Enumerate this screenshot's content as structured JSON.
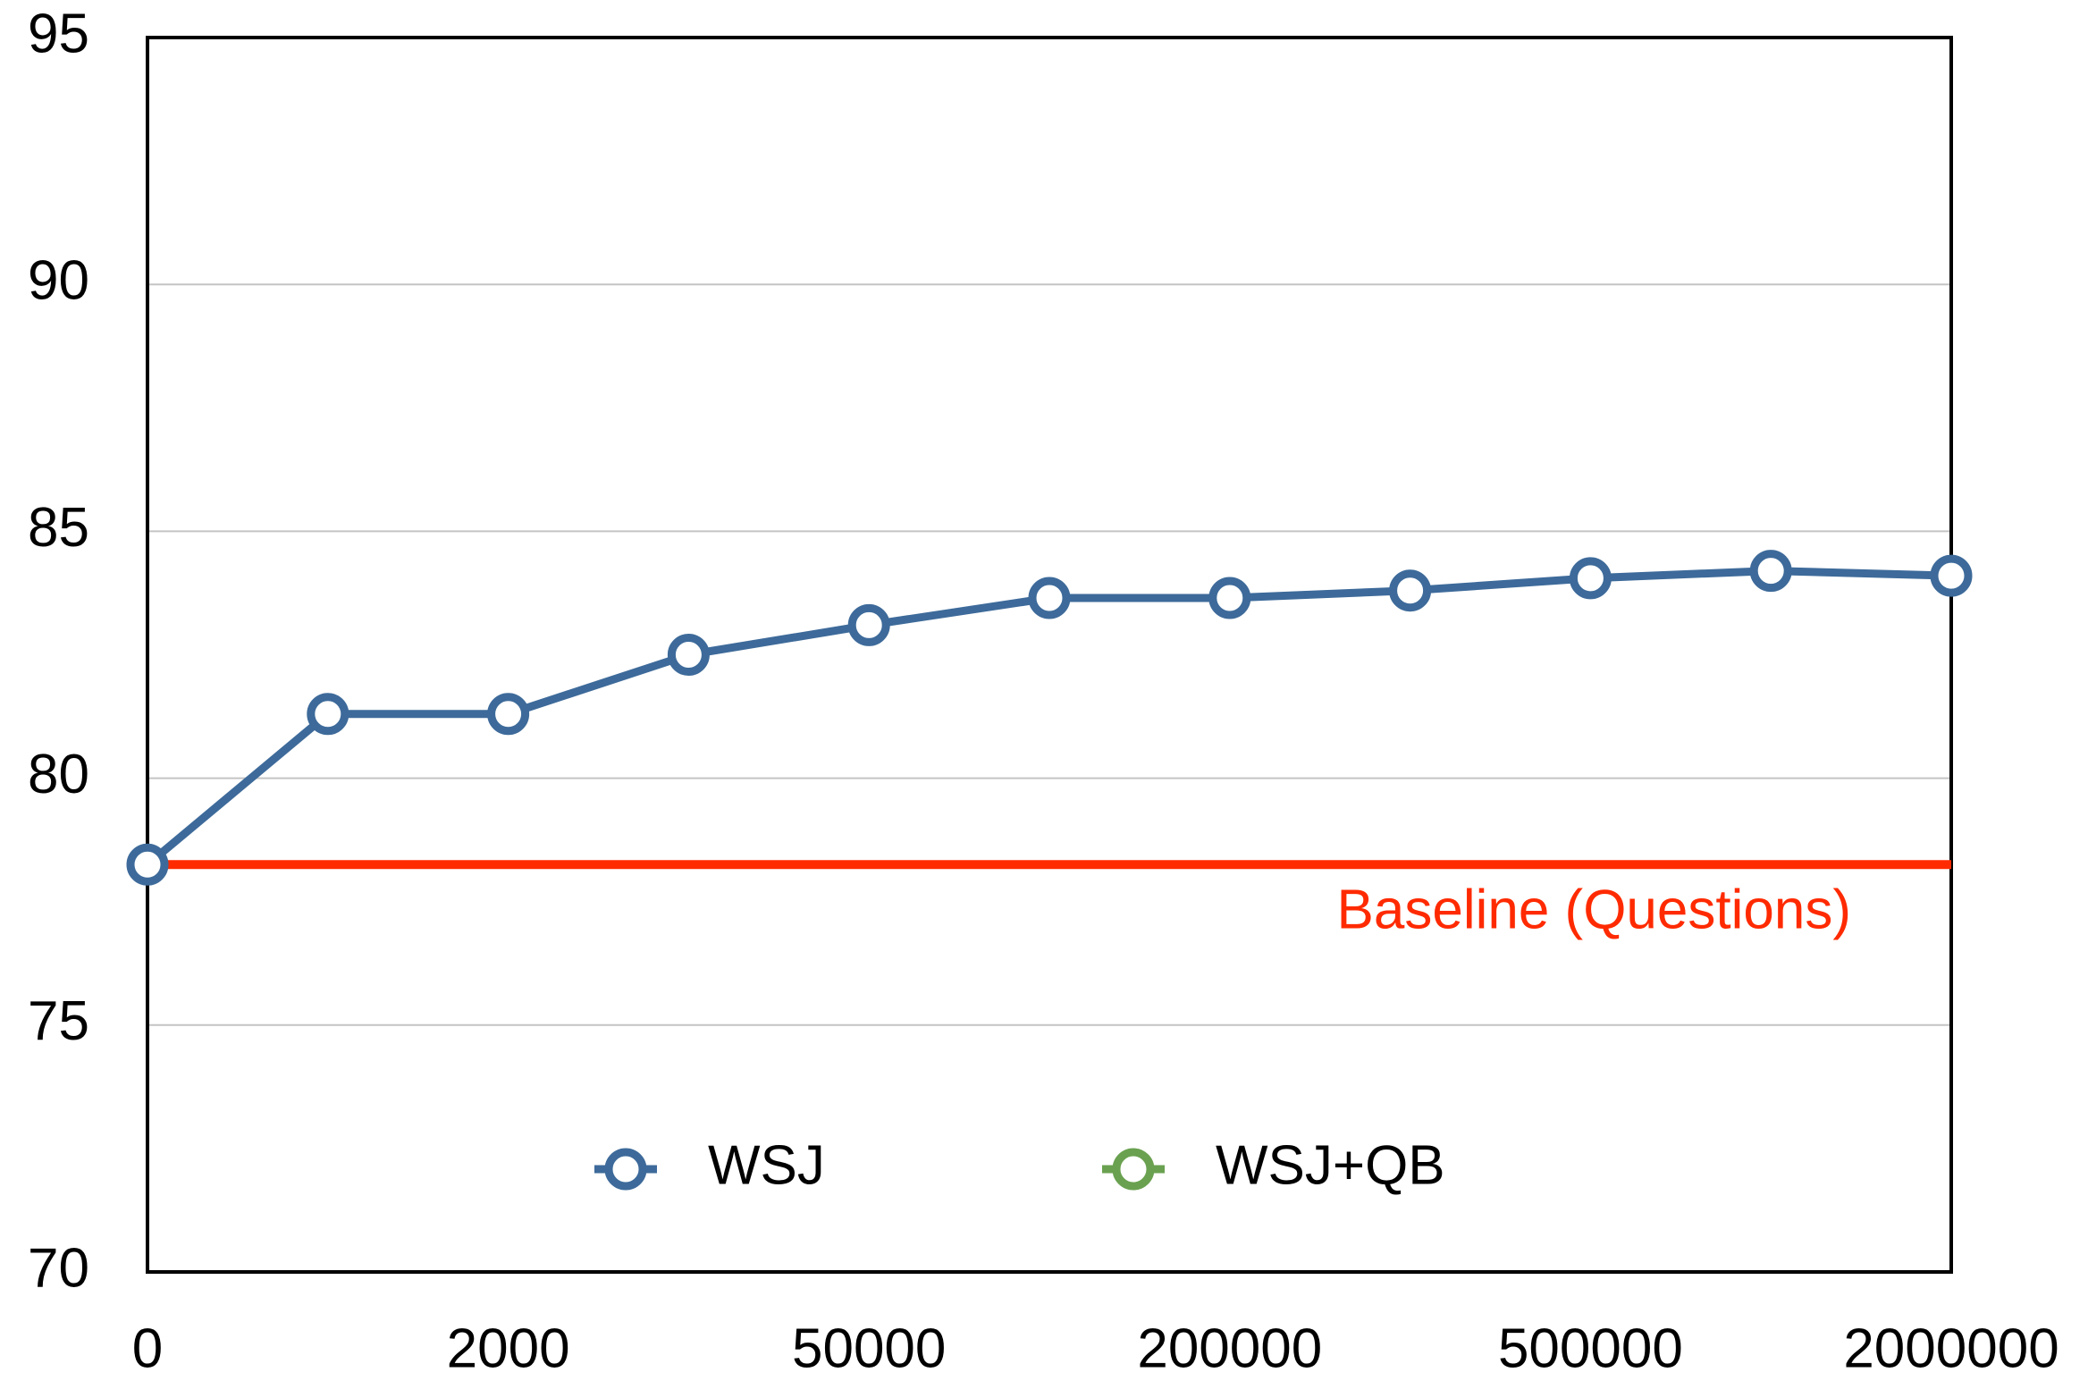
{
  "chart_data": {
    "type": "line",
    "categories": [
      "0",
      null,
      "2000",
      null,
      "50000",
      null,
      "200000",
      null,
      "500000",
      null,
      "2000000"
    ],
    "series": [
      {
        "name": "WSJ",
        "color": "#3d6a9a",
        "values": [
          78.25,
          81.3,
          81.3,
          82.5,
          83.1,
          83.65,
          83.65,
          83.8,
          84.05,
          84.2,
          84.1
        ]
      },
      {
        "name": "WSJ+QB",
        "color": "#6aa150",
        "values": [
          null,
          null,
          null,
          null,
          null,
          null,
          null,
          null,
          null,
          null,
          null
        ]
      }
    ],
    "baseline": {
      "label": "Baseline (Questions)",
      "value": 78.25,
      "color": "#ff2a00"
    },
    "ylim": [
      70,
      95
    ],
    "yticks": [
      70,
      75,
      80,
      85,
      90,
      95
    ],
    "grid": true,
    "legend": "bottom"
  }
}
